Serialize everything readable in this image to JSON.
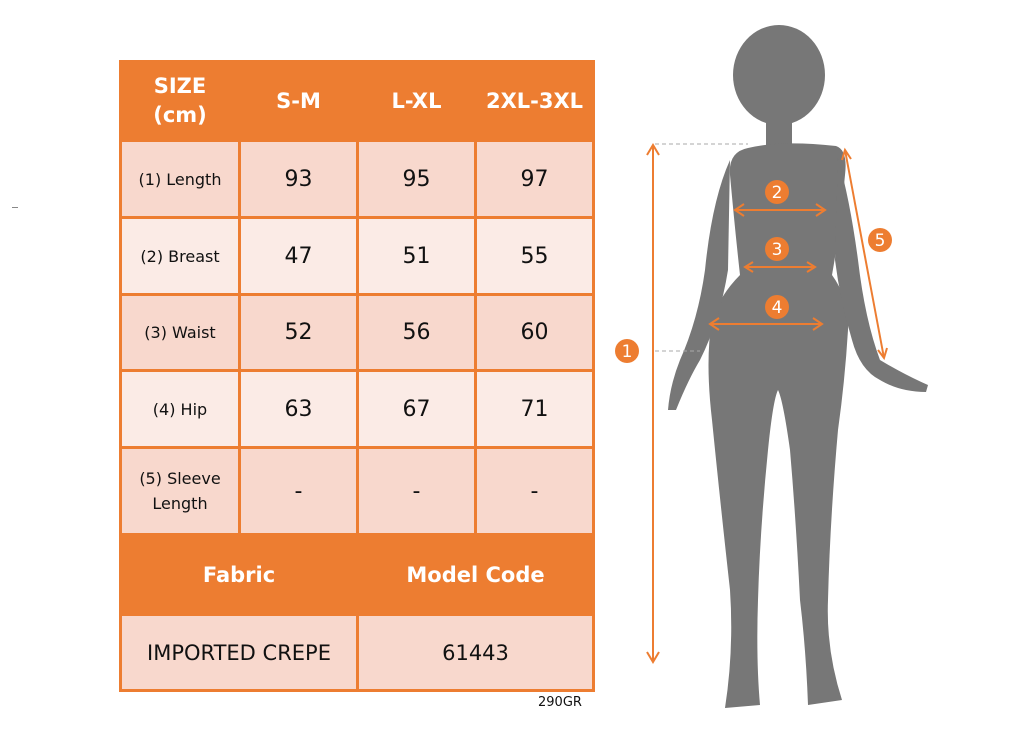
{
  "table": {
    "header": {
      "size_label": "SIZE (cm)",
      "sizes": [
        "S-M",
        "L-XL",
        "2XL-3XL"
      ]
    },
    "rows": [
      {
        "label": "(1) Length",
        "values": [
          "93",
          "95",
          "97"
        ]
      },
      {
        "label": "(2) Breast",
        "values": [
          "47",
          "51",
          "55"
        ]
      },
      {
        "label": "(3) Waist",
        "values": [
          "52",
          "56",
          "60"
        ]
      },
      {
        "label": "(4) Hip",
        "values": [
          "63",
          "67",
          "71"
        ]
      },
      {
        "label": "(5) Sleeve Length",
        "values": [
          "-",
          "-",
          "-"
        ]
      }
    ],
    "fabric_label": "Fabric",
    "model_code_label": "Model Code",
    "fabric_value": "IMPORTED CREPE",
    "model_code_value": "61443"
  },
  "weight": "290GR",
  "figure": {
    "markers": [
      "1",
      "2",
      "3",
      "4",
      "5"
    ]
  },
  "colors": {
    "accent": "#ed7d31",
    "row_dark": "#f8d8cd",
    "row_light": "#fbebe6",
    "silhouette": "#777777"
  }
}
